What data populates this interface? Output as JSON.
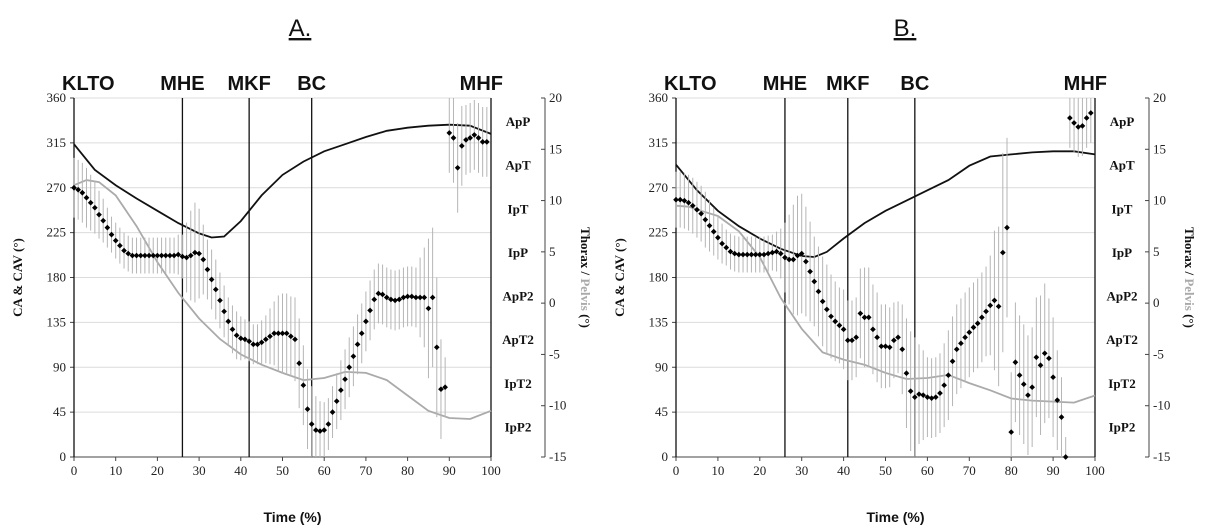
{
  "colors": {
    "thorax": "#111111",
    "pelvis": "#aaaaaa",
    "markers": "#000000",
    "error_bars": "#b5b5b5",
    "grid": "#dcdcdc",
    "event_lines": "#111111"
  },
  "chart_data": [
    {
      "type": "line",
      "panel_label": "A.",
      "xlabel": "Time (%)",
      "ylabel_left": "CA & CAV (°)",
      "ylabel_right_parts": [
        "Thorax",
        " / ",
        "Pelvis",
        " (°)"
      ],
      "xlim": [
        0,
        100
      ],
      "ylim_left": [
        0,
        360
      ],
      "ylim_right": [
        -15,
        20
      ],
      "x_ticks": [
        0,
        10,
        20,
        30,
        40,
        50,
        60,
        70,
        80,
        90,
        100
      ],
      "y_ticks_left": [
        0,
        45,
        90,
        135,
        180,
        225,
        270,
        315,
        360
      ],
      "y_ticks_right": [
        -15,
        -10,
        -5,
        0,
        5,
        10,
        15,
        20
      ],
      "grid": true,
      "events": [
        {
          "label": "KLTO",
          "x": 0
        },
        {
          "label": "MHE",
          "x": 26
        },
        {
          "label": "MKF",
          "x": 42
        },
        {
          "label": "BC",
          "x": 57
        },
        {
          "label": "MHF",
          "x": 100
        }
      ],
      "right_band_labels": [
        "ApP",
        "ApT",
        "IpT",
        "IpP",
        "ApP2",
        "ApT2",
        "IpT2",
        "IpP2"
      ],
      "series": [
        {
          "name": "Thorax",
          "axis": "right",
          "style": "line",
          "x": [
            0,
            5,
            10,
            15,
            20,
            25,
            30,
            33,
            36,
            40,
            45,
            50,
            55,
            60,
            65,
            70,
            75,
            80,
            85,
            90,
            95,
            100
          ],
          "y": [
            15.5,
            13.0,
            11.5,
            10.2,
            9.0,
            7.8,
            6.8,
            6.4,
            6.5,
            8.0,
            10.5,
            12.5,
            13.8,
            14.8,
            15.5,
            16.2,
            16.8,
            17.1,
            17.3,
            17.4,
            17.3,
            16.5
          ]
        },
        {
          "name": "Pelvis",
          "axis": "right",
          "style": "line",
          "x": [
            0,
            3,
            6,
            10,
            15,
            20,
            25,
            30,
            35,
            40,
            45,
            50,
            55,
            60,
            65,
            70,
            75,
            80,
            85,
            90,
            95,
            100
          ],
          "y": [
            11.5,
            12.0,
            11.8,
            10.5,
            7.5,
            4.0,
            1.0,
            -1.5,
            -3.5,
            -5.0,
            -6.0,
            -6.8,
            -7.5,
            -7.3,
            -6.7,
            -6.8,
            -7.5,
            -9.0,
            -10.5,
            -11.2,
            -11.3,
            -10.5
          ]
        },
        {
          "name": "",
          "axis": "left",
          "style": "markers",
          "x": [
            0,
            1,
            2,
            3,
            4,
            5,
            6,
            7,
            8,
            9,
            10,
            11,
            12,
            13,
            14,
            15,
            16,
            17,
            18,
            19,
            20,
            21,
            22,
            23,
            24,
            25,
            26,
            27,
            28,
            29,
            30,
            31,
            32,
            33,
            34,
            35,
            36,
            37,
            38,
            39,
            40,
            41,
            42,
            43,
            44,
            45,
            46,
            47,
            48,
            49,
            50,
            51,
            52,
            53,
            54,
            55,
            56,
            57,
            58,
            59,
            60,
            61,
            62,
            63,
            64,
            65,
            66,
            67,
            68,
            69,
            70,
            71,
            72,
            73,
            74,
            75,
            76,
            77,
            78,
            79,
            80,
            81,
            82,
            83,
            84,
            85,
            86,
            87,
            88,
            89,
            90,
            91,
            92,
            93,
            94,
            95,
            96,
            97,
            98,
            99
          ],
          "y": [
            270,
            268,
            265,
            260,
            255,
            250,
            243,
            237,
            230,
            223,
            217,
            212,
            207,
            204,
            202,
            202,
            202,
            202,
            202,
            202,
            202,
            202,
            202,
            202,
            202,
            203,
            201,
            200,
            202,
            205,
            204,
            198,
            188,
            178,
            168,
            157,
            146,
            136,
            128,
            122,
            119,
            118,
            116,
            113,
            113,
            115,
            118,
            121,
            124,
            124,
            124,
            124,
            121,
            118,
            94,
            72,
            48,
            33,
            27,
            26,
            27,
            33,
            45,
            56,
            67,
            78,
            90,
            101,
            113,
            124,
            136,
            147,
            158,
            164,
            163,
            160,
            158,
            157,
            158,
            160,
            161,
            161,
            160,
            160,
            160,
            149,
            160,
            110,
            68,
            70,
            325,
            320,
            290,
            312,
            318,
            320,
            323,
            320,
            316,
            316
          ],
          "err": [
            30,
            30,
            30,
            30,
            28,
            26,
            24,
            22,
            20,
            18,
            18,
            18,
            18,
            18,
            18,
            18,
            18,
            18,
            18,
            18,
            18,
            18,
            18,
            18,
            18,
            20,
            22,
            35,
            45,
            50,
            45,
            35,
            30,
            30,
            30,
            28,
            26,
            24,
            24,
            24,
            22,
            20,
            20,
            20,
            20,
            22,
            24,
            28,
            32,
            38,
            40,
            40,
            40,
            42,
            45,
            40,
            40,
            38,
            34,
            30,
            28,
            26,
            26,
            28,
            30,
            30,
            30,
            30,
            30,
            30,
            30,
            30,
            30,
            30,
            30,
            30,
            30,
            30,
            30,
            30,
            30,
            30,
            30,
            40,
            50,
            70,
            70,
            70,
            50,
            30,
            40,
            45,
            45,
            40,
            35,
            35,
            35,
            35,
            35,
            35
          ]
        }
      ]
    },
    {
      "type": "line",
      "panel_label": "B.",
      "xlabel": "Time (%)",
      "ylabel_left": "CA & CAV (°)",
      "ylabel_right_parts": [
        "Thorax",
        " / ",
        "Pelvis",
        " (°)"
      ],
      "xlim": [
        0,
        100
      ],
      "ylim_left": [
        0,
        360
      ],
      "ylim_right": [
        -15,
        20
      ],
      "x_ticks": [
        0,
        10,
        20,
        30,
        40,
        50,
        60,
        70,
        80,
        90,
        100
      ],
      "y_ticks_left": [
        0,
        45,
        90,
        135,
        180,
        225,
        270,
        315,
        360
      ],
      "y_ticks_right": [
        -15,
        -10,
        -5,
        0,
        5,
        10,
        15,
        20
      ],
      "grid": true,
      "events": [
        {
          "label": "KLTO",
          "x": 0
        },
        {
          "label": "MHE",
          "x": 26
        },
        {
          "label": "MKF",
          "x": 41
        },
        {
          "label": "BC",
          "x": 57
        },
        {
          "label": "MHF",
          "x": 100
        }
      ],
      "right_band_labels": [
        "ApP",
        "ApT",
        "IpT",
        "IpP",
        "ApP2",
        "ApT2",
        "IpT2",
        "IpP2"
      ],
      "series": [
        {
          "name": "Thorax",
          "axis": "right",
          "style": "line",
          "x": [
            0,
            5,
            10,
            15,
            20,
            25,
            30,
            33,
            36,
            40,
            45,
            50,
            55,
            60,
            65,
            70,
            75,
            80,
            85,
            90,
            95,
            100
          ],
          "y": [
            13.5,
            11.0,
            9.0,
            7.5,
            6.3,
            5.3,
            4.6,
            4.5,
            5.0,
            6.3,
            7.8,
            9.0,
            10.0,
            11.0,
            12.0,
            13.4,
            14.3,
            14.5,
            14.7,
            14.8,
            14.8,
            14.5
          ]
        },
        {
          "name": "Pelvis",
          "axis": "right",
          "style": "line",
          "x": [
            0,
            3,
            6,
            10,
            15,
            20,
            25,
            30,
            35,
            40,
            45,
            50,
            55,
            60,
            65,
            70,
            75,
            80,
            85,
            90,
            95,
            100
          ],
          "y": [
            9.5,
            9.4,
            9.0,
            8.5,
            7.0,
            4.5,
            0.5,
            -2.5,
            -4.8,
            -5.5,
            -6.0,
            -6.8,
            -7.4,
            -7.3,
            -7.0,
            -7.8,
            -8.5,
            -9.3,
            -9.5,
            -9.6,
            -9.7,
            -9.0
          ]
        },
        {
          "name": "",
          "axis": "left",
          "style": "markers",
          "x": [
            0,
            1,
            2,
            3,
            4,
            5,
            6,
            7,
            8,
            9,
            10,
            11,
            12,
            13,
            14,
            15,
            16,
            17,
            18,
            19,
            20,
            21,
            22,
            23,
            24,
            25,
            26,
            27,
            28,
            29,
            30,
            31,
            32,
            33,
            34,
            35,
            36,
            37,
            38,
            39,
            40,
            41,
            42,
            43,
            44,
            45,
            46,
            47,
            48,
            49,
            50,
            51,
            52,
            53,
            54,
            55,
            56,
            57,
            58,
            59,
            60,
            61,
            62,
            63,
            64,
            65,
            66,
            67,
            68,
            69,
            70,
            71,
            72,
            73,
            74,
            75,
            76,
            77,
            78,
            79,
            80,
            81,
            82,
            83,
            84,
            85,
            86,
            87,
            88,
            89,
            90,
            91,
            92,
            93,
            94,
            95,
            96,
            97,
            98,
            99
          ],
          "y": [
            258,
            258,
            257,
            255,
            252,
            248,
            244,
            238,
            232,
            226,
            220,
            214,
            210,
            206,
            204,
            203,
            203,
            203,
            203,
            203,
            203,
            203,
            204,
            205,
            206,
            204,
            200,
            198,
            198,
            202,
            204,
            196,
            186,
            176,
            166,
            156,
            148,
            141,
            136,
            132,
            128,
            117,
            117,
            120,
            144,
            140,
            140,
            128,
            120,
            111,
            111,
            110,
            117,
            120,
            108,
            84,
            66,
            60,
            63,
            62,
            60,
            59,
            60,
            64,
            72,
            82,
            96,
            108,
            114,
            120,
            125,
            130,
            134,
            140,
            146,
            152,
            157,
            151,
            205,
            230,
            25,
            95,
            82,
            73,
            62,
            70,
            100,
            92,
            104,
            99,
            80,
            57,
            40,
            0,
            340,
            335,
            331,
            332,
            340,
            345
          ],
          "err": [
            28,
            28,
            28,
            28,
            28,
            28,
            28,
            28,
            26,
            24,
            22,
            20,
            18,
            18,
            18,
            18,
            18,
            18,
            18,
            18,
            18,
            18,
            18,
            18,
            20,
            25,
            35,
            45,
            55,
            60,
            60,
            55,
            50,
            45,
            45,
            45,
            45,
            42,
            40,
            38,
            40,
            40,
            40,
            40,
            45,
            50,
            50,
            45,
            45,
            42,
            42,
            40,
            38,
            36,
            45,
            55,
            60,
            60,
            50,
            45,
            40,
            40,
            40,
            40,
            42,
            45,
            45,
            45,
            45,
            45,
            45,
            45,
            45,
            45,
            45,
            50,
            70,
            80,
            100,
            90,
            60,
            60,
            60,
            60,
            60,
            60,
            60,
            70,
            70,
            60,
            60,
            50,
            40,
            20,
            30,
            30,
            30,
            30,
            30,
            30
          ]
        }
      ]
    }
  ]
}
